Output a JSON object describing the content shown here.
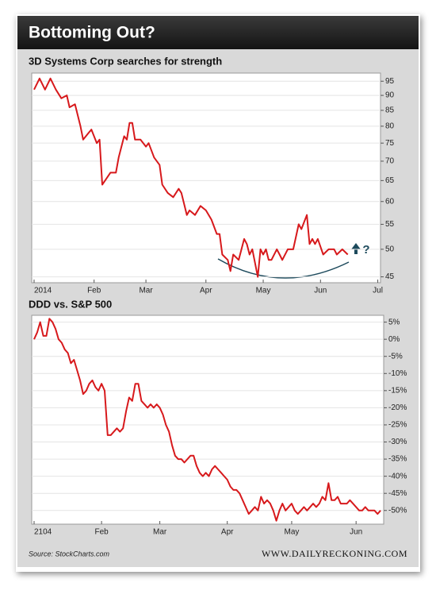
{
  "title": "Bottoming Out?",
  "source": "Source: StockCharts.com",
  "credit": "WWW.DAILYRECKONING.COM",
  "chart_data": [
    {
      "type": "line",
      "title": "3D Systems Corp searches for strength",
      "color": "#d7191c",
      "log_scale": true,
      "grid": true,
      "annotations": [
        "?"
      ],
      "x": [
        0,
        2,
        4,
        6,
        8,
        10,
        12,
        13,
        15,
        17,
        18,
        20,
        21,
        23,
        24,
        25,
        26,
        28,
        30,
        31,
        33,
        34,
        35,
        36,
        37,
        39,
        41,
        42,
        44,
        46,
        47,
        49,
        51,
        53,
        54,
        56,
        57,
        59,
        61,
        63,
        65,
        67,
        68,
        69,
        71,
        72,
        73,
        75,
        77,
        78,
        79,
        80,
        82,
        83,
        84,
        85,
        86,
        87,
        89,
        90,
        91,
        93,
        95,
        97,
        98,
        100,
        101,
        102,
        103,
        104,
        106,
        108,
        110,
        111,
        113,
        115
      ],
      "values": [
        92,
        96,
        92,
        96,
        92,
        89,
        90,
        86,
        87,
        80,
        76,
        78,
        79,
        75,
        76,
        64,
        65,
        67,
        67,
        71,
        77,
        76,
        81,
        81,
        76,
        76,
        74,
        75,
        71,
        69,
        64,
        62,
        61,
        63,
        62,
        57,
        58,
        57,
        59,
        58,
        56,
        53,
        53,
        49,
        48,
        46,
        49,
        48,
        52,
        51,
        49,
        50,
        45,
        50,
        49,
        50,
        48,
        48,
        50,
        49,
        48,
        50,
        50,
        55,
        54,
        57,
        51,
        52,
        51,
        52,
        49,
        50,
        50,
        49,
        50,
        49
      ],
      "xlim": [
        0,
        127
      ],
      "xticks": [
        {
          "value": 0,
          "label": "2014"
        },
        {
          "value": 22,
          "label": "Feb"
        },
        {
          "value": 41,
          "label": "Mar"
        },
        {
          "value": 63,
          "label": "Apr"
        },
        {
          "value": 84,
          "label": "May"
        },
        {
          "value": 105,
          "label": "Jun"
        },
        {
          "value": 126,
          "label": "Jul"
        }
      ],
      "ylim": [
        44,
        98
      ],
      "yticks": [
        45,
        50,
        55,
        60,
        65,
        70,
        75,
        80,
        85,
        90,
        95
      ]
    },
    {
      "type": "line",
      "title": "DDD vs. S&P 500",
      "color": "#d7191c",
      "log_scale": false,
      "grid": true,
      "x": [
        0,
        1,
        2,
        3,
        4,
        5,
        6,
        7,
        8,
        9,
        10,
        11,
        12,
        13,
        14,
        15,
        16,
        17,
        18,
        19,
        20,
        21,
        22,
        23,
        24,
        25,
        26,
        27,
        28,
        29,
        30,
        31,
        32,
        33,
        34,
        35,
        36,
        37,
        38,
        39,
        40,
        41,
        42,
        43,
        44,
        45,
        46,
        47,
        48,
        49,
        50,
        51,
        52,
        53,
        54,
        55,
        56,
        57,
        58,
        59,
        60,
        61,
        62,
        63,
        64,
        65,
        66,
        67,
        68,
        69,
        70,
        71,
        72,
        73,
        74,
        75,
        76,
        77,
        78,
        79,
        80,
        81,
        82,
        83,
        84,
        85,
        86,
        87,
        88,
        89,
        90,
        91,
        92,
        93,
        94,
        95,
        96,
        97,
        98,
        99,
        100,
        101,
        102,
        103,
        104,
        105,
        106,
        107,
        108,
        109,
        110,
        111,
        112,
        113
      ],
      "values": [
        0,
        2,
        5,
        1,
        1,
        6,
        5,
        3,
        0,
        -1,
        -3,
        -4,
        -7,
        -6,
        -9,
        -12,
        -16,
        -15,
        -13,
        -12,
        -14,
        -15,
        -13,
        -15,
        -28,
        -28,
        -27,
        -26,
        -27,
        -26,
        -21,
        -17,
        -18,
        -13,
        -13,
        -18,
        -19,
        -20,
        -19,
        -20,
        -19,
        -20,
        -22,
        -25,
        -27,
        -31,
        -34,
        -35,
        -35,
        -36,
        -35,
        -34,
        -34,
        -37,
        -39,
        -40,
        -39,
        -40,
        -38,
        -37,
        -38,
        -39,
        -40,
        -41,
        -43,
        -44,
        -44,
        -45,
        -47,
        -49,
        -51,
        -50,
        -49,
        -50,
        -46,
        -48,
        -47,
        -48,
        -50,
        -53,
        -50,
        -48,
        -50,
        -49,
        -48,
        -50,
        -51,
        -50,
        -49,
        -50,
        -49,
        -48,
        -49,
        -48,
        -46,
        -47,
        -42,
        -47,
        -47,
        -46,
        -48,
        -48,
        -48,
        -47,
        -48,
        -49,
        -50,
        -50,
        -49,
        -50,
        -50,
        -50,
        -51,
        -50
      ],
      "xlim": [
        0,
        114
      ],
      "xticks": [
        {
          "value": 0,
          "label": "2104"
        },
        {
          "value": 22,
          "label": "Feb"
        },
        {
          "value": 41,
          "label": "Mar"
        },
        {
          "value": 63,
          "label": "Apr"
        },
        {
          "value": 84,
          "label": "May"
        },
        {
          "value": 105,
          "label": "Jun"
        }
      ],
      "ylim": [
        -54,
        7
      ],
      "yticks": [
        {
          "value": 5,
          "label": "5%"
        },
        {
          "value": 0,
          "label": "0%"
        },
        {
          "value": -5,
          "label": "-5%"
        },
        {
          "value": -10,
          "label": "-10%"
        },
        {
          "value": -15,
          "label": "-15%"
        },
        {
          "value": -20,
          "label": "-20%"
        },
        {
          "value": -25,
          "label": "-25%"
        },
        {
          "value": -30,
          "label": "-30%"
        },
        {
          "value": -35,
          "label": "-35%"
        },
        {
          "value": -40,
          "label": "-40%"
        },
        {
          "value": -45,
          "label": "-45%"
        },
        {
          "value": -50,
          "label": "-50%"
        }
      ]
    }
  ]
}
